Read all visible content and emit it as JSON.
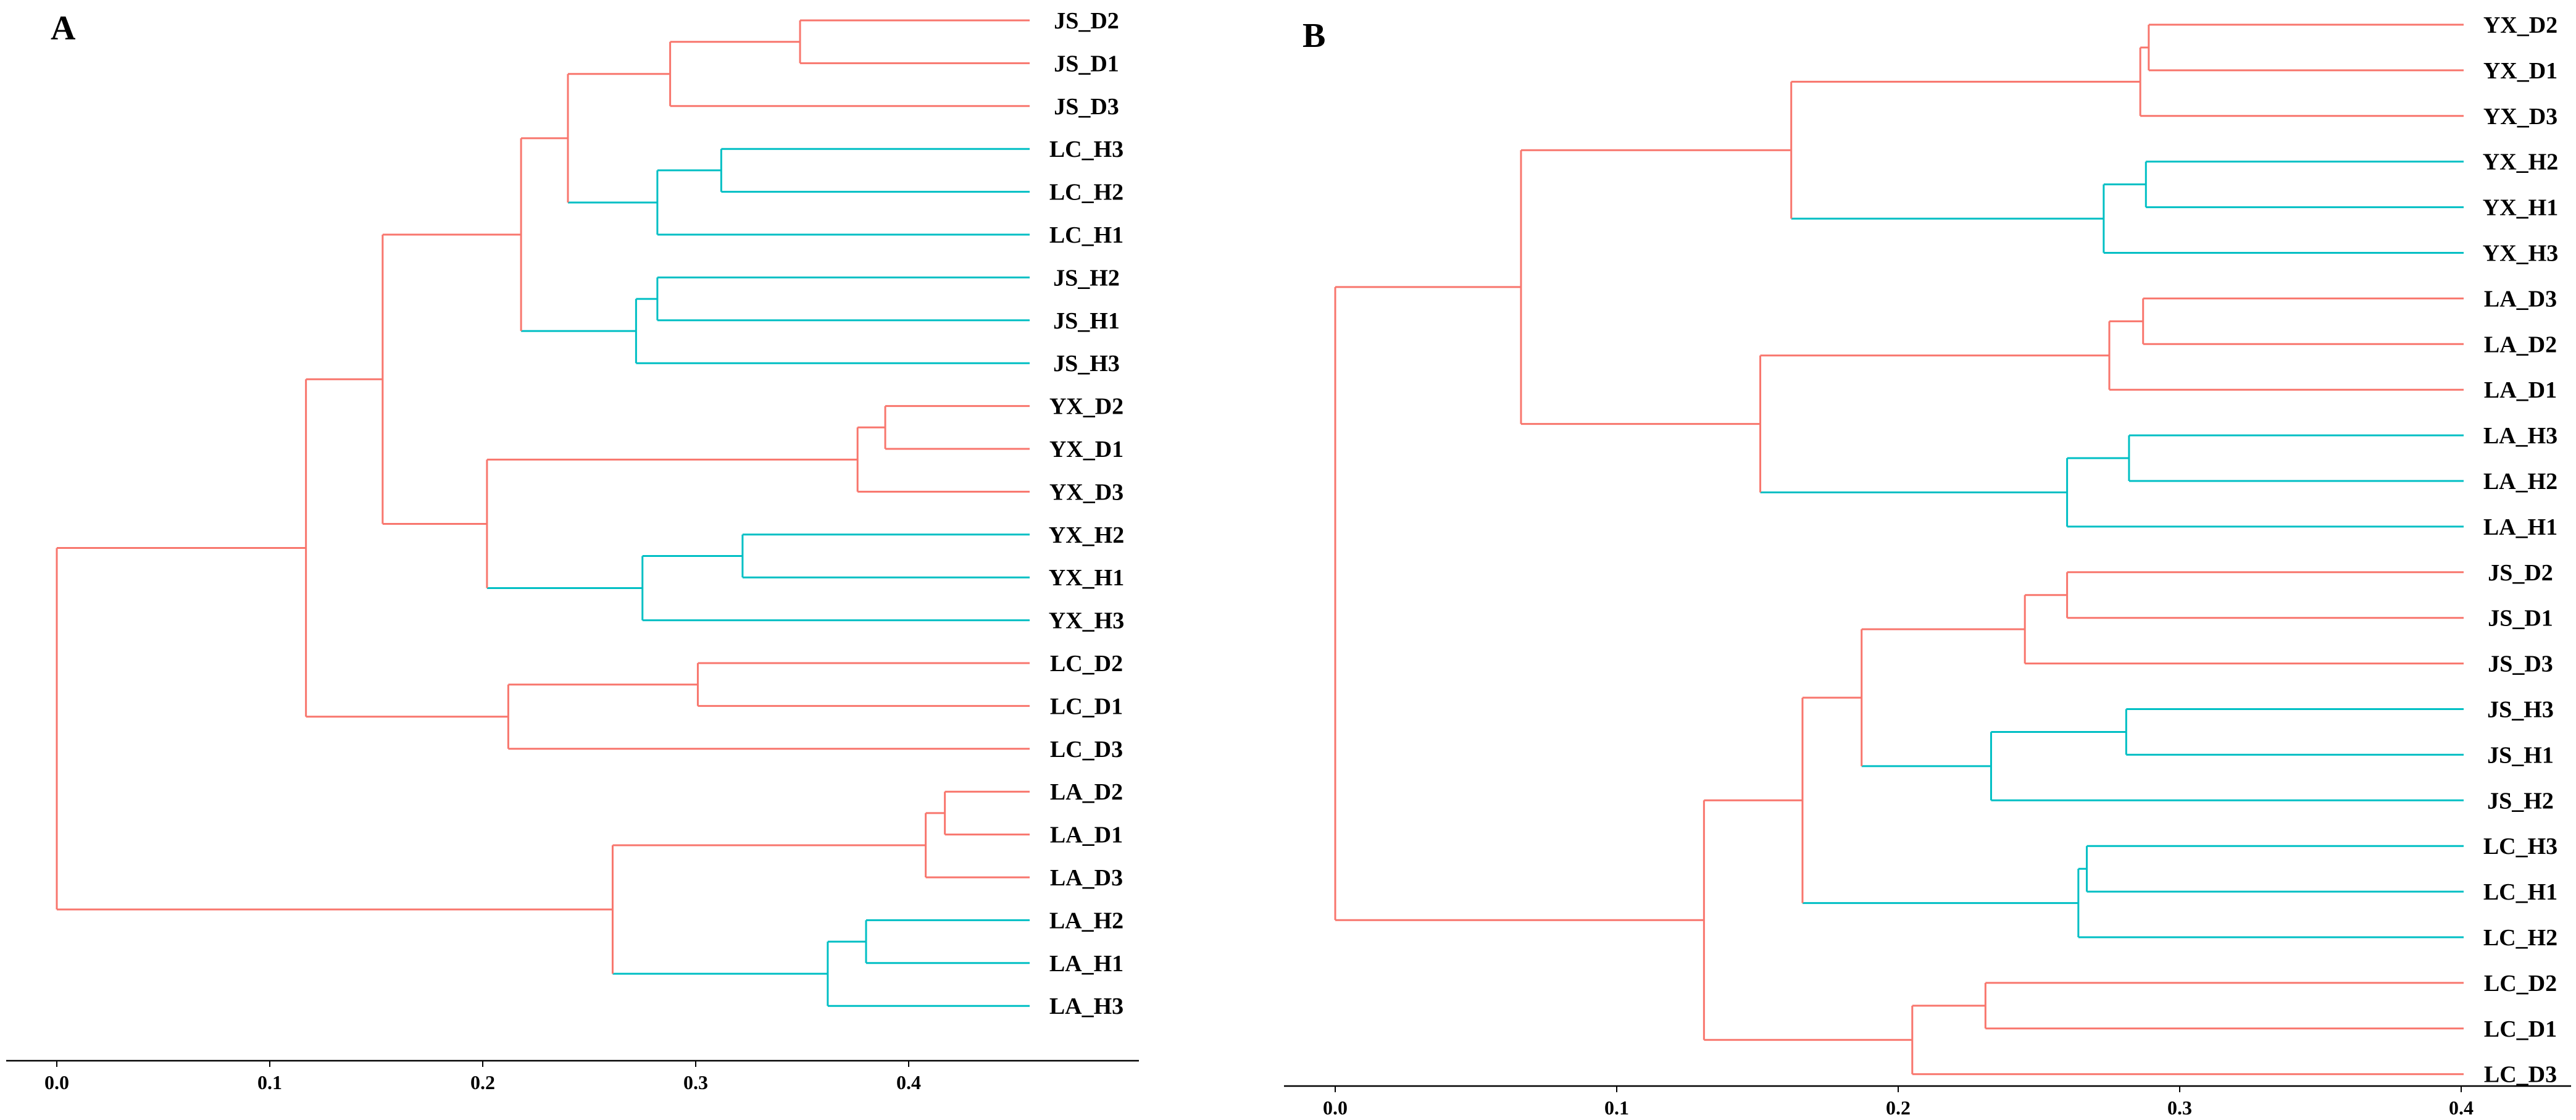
{
  "chart_data": [
    {
      "type": "dendrogram",
      "panel": "A",
      "orientation": "left-to-right",
      "colors": {
        "root": "#F8766D",
        "cluster_1": "#F8766D",
        "cluster_2": "#00BFC4"
      },
      "x_ticks": [
        "0.0",
        "0.1",
        "0.2",
        "0.3",
        "0.4"
      ],
      "x_tick_values": [
        0.0,
        0.1,
        0.2,
        0.3,
        0.4
      ],
      "xlim": [
        -0.02,
        0.48
      ],
      "leaves": [
        "JS_D2",
        "JS_D1",
        "JS_D3",
        "LC_H3",
        "LC_H2",
        "LC_H1",
        "JS_H2",
        "JS_H1",
        "JS_H3",
        "YX_D2",
        "YX_D1",
        "YX_D3",
        "YX_H2",
        "YX_H1",
        "YX_H3",
        "LC_D2",
        "LC_D1",
        "LC_D3",
        "LA_D2",
        "LA_D1",
        "LA_D3",
        "LA_H2",
        "LA_H1",
        "LA_H3"
      ],
      "tree": {
        "h": 0.0,
        "c": [
          {
            "h": 0.117,
            "g": 1,
            "c": [
              {
                "h": 0.153,
                "g": 1,
                "c": [
                  {
                    "h": 0.218,
                    "g": 1,
                    "c": [
                      {
                        "h": 0.24,
                        "g": 1,
                        "c": [
                          {
                            "h": 0.288,
                            "g": 1,
                            "c": [
                              {
                                "h": 0.349,
                                "g": 1,
                                "c": [
                                  {
                                    "l": 0
                                  },
                                  {
                                    "l": 1
                                  }
                                ]
                              },
                              {
                                "l": 2
                              }
                            ]
                          },
                          {
                            "h": 0.282,
                            "g": 2,
                            "c": [
                              {
                                "h": 0.312,
                                "g": 2,
                                "c": [
                                  {
                                    "l": 3
                                  },
                                  {
                                    "l": 4
                                  }
                                ]
                              },
                              {
                                "l": 5
                              }
                            ]
                          }
                        ]
                      },
                      {
                        "h": 0.272,
                        "g": 2,
                        "c": [
                          {
                            "h": 0.282,
                            "g": 2,
                            "c": [
                              {
                                "l": 6
                              },
                              {
                                "l": 7
                              }
                            ]
                          },
                          {
                            "l": 8
                          }
                        ]
                      }
                    ]
                  },
                  {
                    "h": 0.202,
                    "g": 1,
                    "c": [
                      {
                        "h": 0.376,
                        "g": 1,
                        "c": [
                          {
                            "h": 0.389,
                            "g": 1,
                            "c": [
                              {
                                "l": 9
                              },
                              {
                                "l": 10
                              }
                            ]
                          },
                          {
                            "l": 11
                          }
                        ]
                      },
                      {
                        "h": 0.275,
                        "g": 2,
                        "c": [
                          {
                            "h": 0.322,
                            "g": 2,
                            "c": [
                              {
                                "l": 12
                              },
                              {
                                "l": 13
                              }
                            ]
                          },
                          {
                            "l": 14
                          }
                        ]
                      }
                    ]
                  }
                ]
              },
              {
                "h": 0.212,
                "g": 1,
                "c": [
                  {
                    "h": 0.301,
                    "g": 1,
                    "c": [
                      {
                        "l": 15
                      },
                      {
                        "l": 16
                      }
                    ]
                  },
                  {
                    "l": 17
                  }
                ]
              }
            ]
          },
          {
            "h": 0.261,
            "g": 1,
            "c": [
              {
                "h": 0.408,
                "g": 1,
                "c": [
                  {
                    "h": 0.417,
                    "g": 1,
                    "c": [
                      {
                        "l": 18
                      },
                      {
                        "l": 19
                      }
                    ]
                  },
                  {
                    "l": 20
                  }
                ]
              },
              {
                "h": 0.362,
                "g": 2,
                "c": [
                  {
                    "h": 0.38,
                    "g": 2,
                    "c": [
                      {
                        "l": 21
                      },
                      {
                        "l": 22
                      }
                    ]
                  },
                  {
                    "l": 23
                  }
                ]
              }
            ]
          }
        ]
      }
    },
    {
      "type": "dendrogram",
      "panel": "B",
      "orientation": "left-to-right",
      "colors": {
        "root": "#F8766D",
        "cluster_1": "#F8766D",
        "cluster_2": "#00BFC4"
      },
      "x_ticks": [
        "0.0",
        "0.1",
        "0.2",
        "0.3",
        "0.4"
      ],
      "x_tick_values": [
        0.0,
        0.1,
        0.2,
        0.3,
        0.4
      ],
      "xlim": [
        -0.02,
        0.42
      ],
      "leaves": [
        "YX_D2",
        "YX_D1",
        "YX_D3",
        "YX_H2",
        "YX_H1",
        "YX_H3",
        "LA_D3",
        "LA_D2",
        "LA_D1",
        "LA_H3",
        "LA_H2",
        "LA_H1",
        "JS_D2",
        "JS_D1",
        "JS_D3",
        "JS_H3",
        "JS_H1",
        "JS_H2",
        "LC_H3",
        "LC_H1",
        "LC_H2",
        "LC_D2",
        "LC_D1",
        "LC_D3"
      ],
      "tree": {
        "h": 0.0,
        "c": [
          {
            "h": 0.066,
            "g": 1,
            "c": [
              {
                "h": 0.162,
                "g": 1,
                "c": [
                  {
                    "h": 0.286,
                    "g": 1,
                    "c": [
                      {
                        "h": 0.289,
                        "g": 1,
                        "c": [
                          {
                            "l": 0
                          },
                          {
                            "l": 1
                          }
                        ]
                      },
                      {
                        "l": 2
                      }
                    ]
                  },
                  {
                    "h": 0.273,
                    "g": 2,
                    "c": [
                      {
                        "h": 0.288,
                        "g": 2,
                        "c": [
                          {
                            "l": 3
                          },
                          {
                            "l": 4
                          }
                        ]
                      },
                      {
                        "l": 5
                      }
                    ]
                  }
                ]
              },
              {
                "h": 0.151,
                "g": 1,
                "c": [
                  {
                    "h": 0.275,
                    "g": 1,
                    "c": [
                      {
                        "h": 0.287,
                        "g": 1,
                        "c": [
                          {
                            "l": 6
                          },
                          {
                            "l": 7
                          }
                        ]
                      },
                      {
                        "l": 8
                      }
                    ]
                  },
                  {
                    "h": 0.26,
                    "g": 2,
                    "c": [
                      {
                        "h": 0.282,
                        "g": 2,
                        "c": [
                          {
                            "l": 9
                          },
                          {
                            "l": 10
                          }
                        ]
                      },
                      {
                        "l": 11
                      }
                    ]
                  }
                ]
              }
            ]
          },
          {
            "h": 0.131,
            "g": 1,
            "c": [
              {
                "h": 0.166,
                "g": 1,
                "c": [
                  {
                    "h": 0.187,
                    "g": 1,
                    "c": [
                      {
                        "h": 0.245,
                        "g": 1,
                        "c": [
                          {
                            "h": 0.26,
                            "g": 1,
                            "c": [
                              {
                                "l": 12
                              },
                              {
                                "l": 13
                              }
                            ]
                          },
                          {
                            "l": 14
                          }
                        ]
                      },
                      {
                        "h": 0.233,
                        "g": 2,
                        "c": [
                          {
                            "h": 0.281,
                            "g": 2,
                            "c": [
                              {
                                "l": 15
                              },
                              {
                                "l": 16
                              }
                            ]
                          },
                          {
                            "l": 17
                          }
                        ]
                      }
                    ]
                  },
                  {
                    "h": 0.264,
                    "g": 2,
                    "c": [
                      {
                        "h": 0.267,
                        "g": 2,
                        "c": [
                          {
                            "l": 18
                          },
                          {
                            "l": 19
                          }
                        ]
                      },
                      {
                        "l": 20
                      }
                    ]
                  }
                ]
              },
              {
                "h": 0.205,
                "g": 1,
                "c": [
                  {
                    "h": 0.231,
                    "g": 1,
                    "c": [
                      {
                        "l": 21
                      },
                      {
                        "l": 22
                      }
                    ]
                  },
                  {
                    "l": 23
                  }
                ]
              }
            ]
          }
        ]
      }
    }
  ]
}
